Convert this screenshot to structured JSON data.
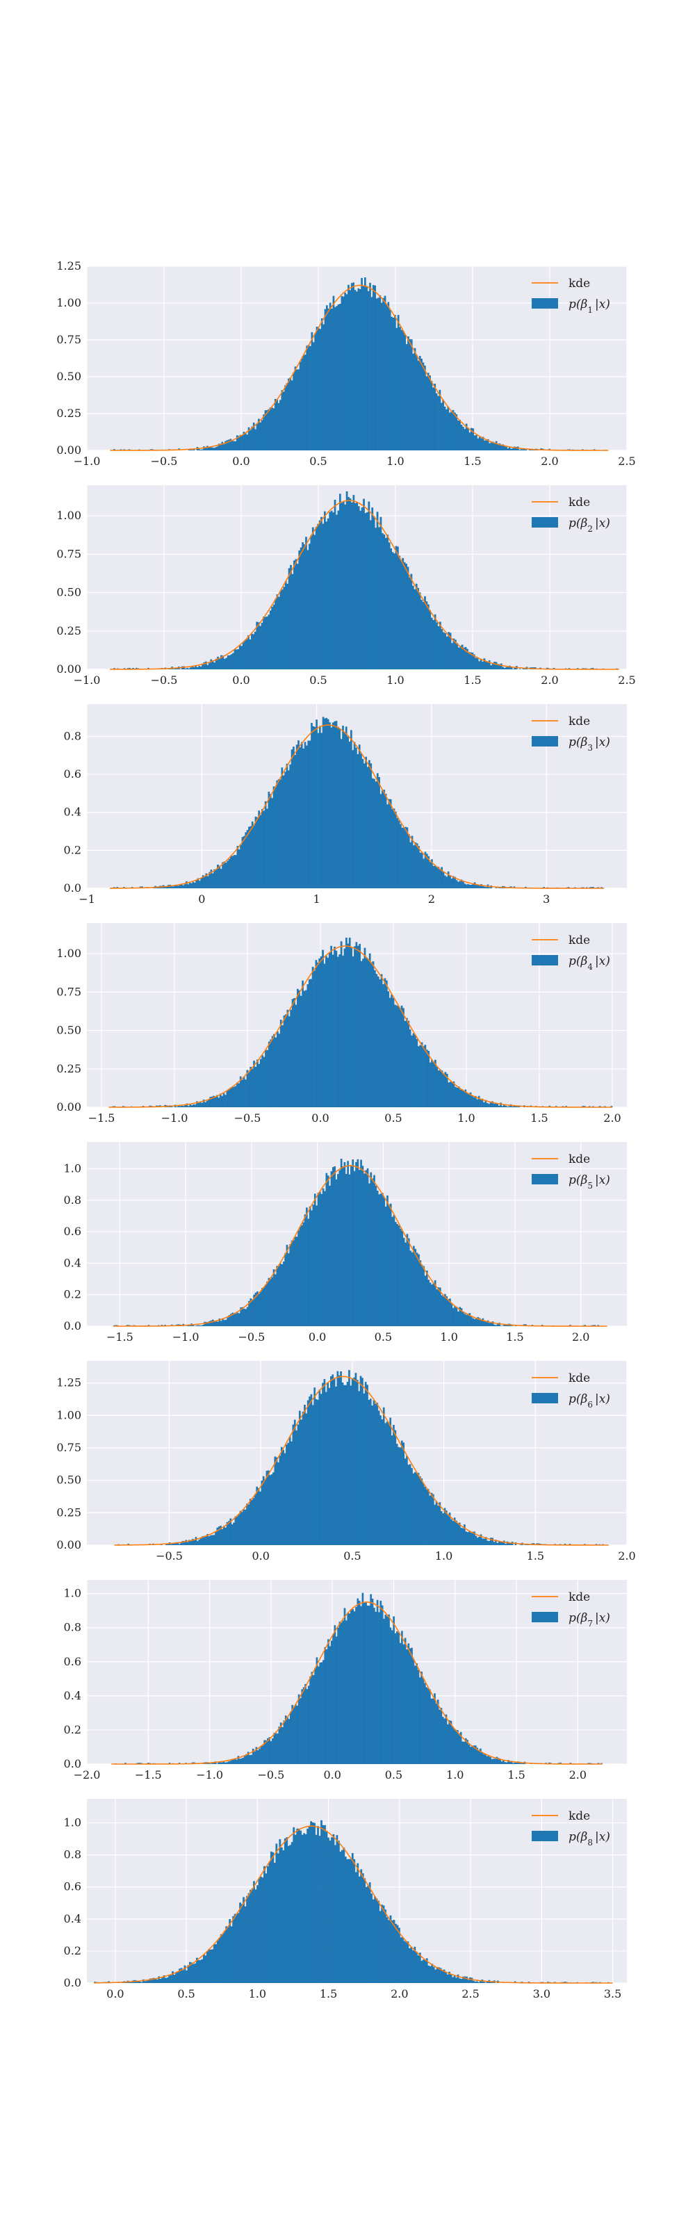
{
  "colors": {
    "panel_bg": "#eaeaf2",
    "grid": "#ffffff",
    "hist": "#1f77b4",
    "kde": "#ff7f0e"
  },
  "chart_data": [
    {
      "type": "histogram",
      "kde_label": "kde",
      "hist_label_sub": "1",
      "xlim": [
        -1.0,
        2.5
      ],
      "ylim": [
        0.0,
        1.25
      ],
      "xticks": [
        -1.0,
        -0.5,
        0.0,
        0.5,
        1.0,
        1.5,
        2.0,
        2.5
      ],
      "xtick_labels": [
        "−1.0",
        "−0.5",
        "0.0",
        "0.5",
        "1.0",
        "1.5",
        "2.0",
        "2.5"
      ],
      "yticks": [
        0.0,
        0.25,
        0.5,
        0.75,
        1.0,
        1.25
      ],
      "ytick_labels": [
        "0.00",
        "0.25",
        "0.50",
        "0.75",
        "1.00",
        "1.25"
      ],
      "distribution": {
        "mean": 0.77,
        "sd": 0.35,
        "peak": 1.12,
        "min": -0.85,
        "max": 2.38
      },
      "legend": "top-right",
      "grid": true
    },
    {
      "type": "histogram",
      "kde_label": "kde",
      "hist_label_sub": "2",
      "xlim": [
        -1.0,
        2.5
      ],
      "ylim": [
        0.0,
        1.2
      ],
      "xticks": [
        -1.0,
        -0.5,
        0.0,
        0.5,
        1.0,
        1.5,
        2.0,
        2.5
      ],
      "xtick_labels": [
        "−1.0",
        "−0.5",
        "0.0",
        "0.5",
        "1.0",
        "1.5",
        "2.0",
        "2.5"
      ],
      "yticks": [
        0.0,
        0.25,
        0.5,
        0.75,
        1.0
      ],
      "ytick_labels": [
        "0.00",
        "0.25",
        "0.50",
        "0.75",
        "1.00"
      ],
      "distribution": {
        "mean": 0.7,
        "sd": 0.36,
        "peak": 1.1,
        "min": -0.85,
        "max": 2.45
      },
      "legend": "top-right",
      "grid": true
    },
    {
      "type": "histogram",
      "kde_label": "kde",
      "hist_label_sub": "3",
      "xlim": [
        -1.0,
        3.7
      ],
      "ylim": [
        0.0,
        0.97
      ],
      "xticks": [
        -1,
        0,
        1,
        2,
        3
      ],
      "xtick_labels": [
        "−1",
        "0",
        "1",
        "2",
        "3"
      ],
      "yticks": [
        0.0,
        0.2,
        0.4,
        0.6,
        0.8
      ],
      "ytick_labels": [
        "0.0",
        "0.2",
        "0.4",
        "0.6",
        "0.8"
      ],
      "distribution": {
        "mean": 1.1,
        "sd": 0.47,
        "peak": 0.86,
        "min": -0.8,
        "max": 3.5
      },
      "legend": "top-right",
      "grid": true
    },
    {
      "type": "histogram",
      "kde_label": "kde",
      "hist_label_sub": "4",
      "xlim": [
        -1.6,
        2.1
      ],
      "ylim": [
        0.0,
        1.2
      ],
      "xticks": [
        -1.5,
        -1.0,
        -0.5,
        0.0,
        0.5,
        1.0,
        1.5,
        2.0
      ],
      "xtick_labels": [
        "−1.5",
        "−1.0",
        "−0.5",
        "0.0",
        "0.5",
        "1.0",
        "1.5",
        "2.0"
      ],
      "yticks": [
        0.0,
        0.25,
        0.5,
        0.75,
        1.0
      ],
      "ytick_labels": [
        "0.00",
        "0.25",
        "0.50",
        "0.75",
        "1.00"
      ],
      "distribution": {
        "mean": 0.17,
        "sd": 0.38,
        "peak": 1.05,
        "min": -1.45,
        "max": 2.0
      },
      "legend": "top-right",
      "grid": true
    },
    {
      "type": "histogram",
      "kde_label": "kde",
      "hist_label_sub": "5",
      "xlim": [
        -1.75,
        2.35
      ],
      "ylim": [
        0.0,
        1.17
      ],
      "xticks": [
        -1.5,
        -1.0,
        -0.5,
        0.0,
        0.5,
        1.0,
        1.5,
        2.0
      ],
      "xtick_labels": [
        "−1.5",
        "−1.0",
        "−0.5",
        "0.0",
        "0.5",
        "1.0",
        "1.5",
        "2.0"
      ],
      "yticks": [
        0.0,
        0.2,
        0.4,
        0.6,
        0.8,
        1.0
      ],
      "ytick_labels": [
        "0.0",
        "0.2",
        "0.4",
        "0.6",
        "0.8",
        "1.0"
      ],
      "distribution": {
        "mean": 0.25,
        "sd": 0.39,
        "peak": 1.02,
        "min": -1.55,
        "max": 2.2
      },
      "legend": "top-right",
      "grid": true
    },
    {
      "type": "histogram",
      "kde_label": "kde",
      "hist_label_sub": "6",
      "xlim": [
        -0.95,
        2.0
      ],
      "ylim": [
        0.0,
        1.42
      ],
      "xticks": [
        -0.5,
        0.0,
        0.5,
        1.0,
        1.5,
        2.0
      ],
      "xtick_labels": [
        "−0.5",
        "0.0",
        "0.5",
        "1.0",
        "1.5",
        "2.0"
      ],
      "yticks": [
        0.0,
        0.25,
        0.5,
        0.75,
        1.0,
        1.25
      ],
      "ytick_labels": [
        "0.00",
        "0.25",
        "0.50",
        "0.75",
        "1.00",
        "1.25"
      ],
      "distribution": {
        "mean": 0.45,
        "sd": 0.31,
        "peak": 1.3,
        "min": -0.8,
        "max": 1.9
      },
      "legend": "top-right",
      "grid": true
    },
    {
      "type": "histogram",
      "kde_label": "kde",
      "hist_label_sub": "7",
      "xlim": [
        -2.0,
        2.4
      ],
      "ylim": [
        0.0,
        1.08
      ],
      "xticks": [
        -2.0,
        -1.5,
        -1.0,
        -0.5,
        0.0,
        0.5,
        1.0,
        1.5,
        2.0
      ],
      "xtick_labels": [
        "−2.0",
        "−1.5",
        "−1.0",
        "−0.5",
        "0.0",
        "0.5",
        "1.0",
        "1.5",
        "2.0"
      ],
      "yticks": [
        0.0,
        0.2,
        0.4,
        0.6,
        0.8,
        1.0
      ],
      "ytick_labels": [
        "0.0",
        "0.2",
        "0.4",
        "0.6",
        "0.8",
        "1.0"
      ],
      "distribution": {
        "mean": 0.28,
        "sd": 0.41,
        "peak": 0.95,
        "min": -1.8,
        "max": 2.2
      },
      "legend": "top-right",
      "grid": true
    },
    {
      "type": "histogram",
      "kde_label": "kde",
      "hist_label_sub": "8",
      "xlim": [
        -0.2,
        3.6
      ],
      "ylim": [
        0.0,
        1.15
      ],
      "xticks": [
        0.0,
        0.5,
        1.0,
        1.5,
        2.0,
        2.5,
        3.0,
        3.5
      ],
      "xtick_labels": [
        "0.0",
        "0.5",
        "1.0",
        "1.5",
        "2.0",
        "2.5",
        "3.0",
        "3.5"
      ],
      "yticks": [
        0.0,
        0.2,
        0.4,
        0.6,
        0.8,
        1.0
      ],
      "ytick_labels": [
        "0.0",
        "0.2",
        "0.4",
        "0.6",
        "0.8",
        "1.0"
      ],
      "distribution": {
        "mean": 1.38,
        "sd": 0.41,
        "peak": 0.98,
        "min": -0.15,
        "max": 3.5
      },
      "legend": "top-right",
      "grid": true
    }
  ]
}
